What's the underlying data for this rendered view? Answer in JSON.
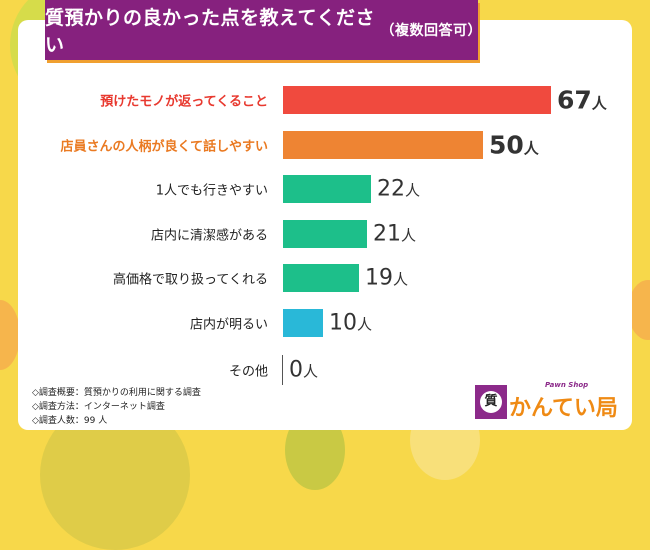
{
  "title": "質預かりの良かった点を教えてください",
  "title_note": "（複数回答可）",
  "chart_data": {
    "type": "bar",
    "orientation": "horizontal",
    "title": "質預かりの良かった点を教えてください（複数回答可）",
    "unit": "人",
    "categories": [
      "預けたモノが返ってくること",
      "店員さんの人柄が良くて話しやすい",
      "1人でも行きやすい",
      "店内に清潔感がある",
      "高価格で取り扱ってくれる",
      "店内が明るい",
      "その他"
    ],
    "values": [
      67,
      50,
      22,
      21,
      19,
      10,
      0
    ],
    "colors": [
      "#f04a3e",
      "#ee8433",
      "#1dbf8a",
      "#1dbf8a",
      "#1dbf8a",
      "#29b8d8",
      "#999999"
    ],
    "label_colors": [
      "#e8392f",
      "#ea7a22",
      "#222222",
      "#222222",
      "#222222",
      "#222222",
      "#222222"
    ]
  },
  "notes": [
    "◇調査概要：質預かりの利用に関する調査",
    "◇調査方法：インターネット調査",
    "◇調査人数：99 人"
  ],
  "logo": {
    "name": "かんてい局",
    "tagline": "Pawn Shop",
    "mark": "質"
  }
}
